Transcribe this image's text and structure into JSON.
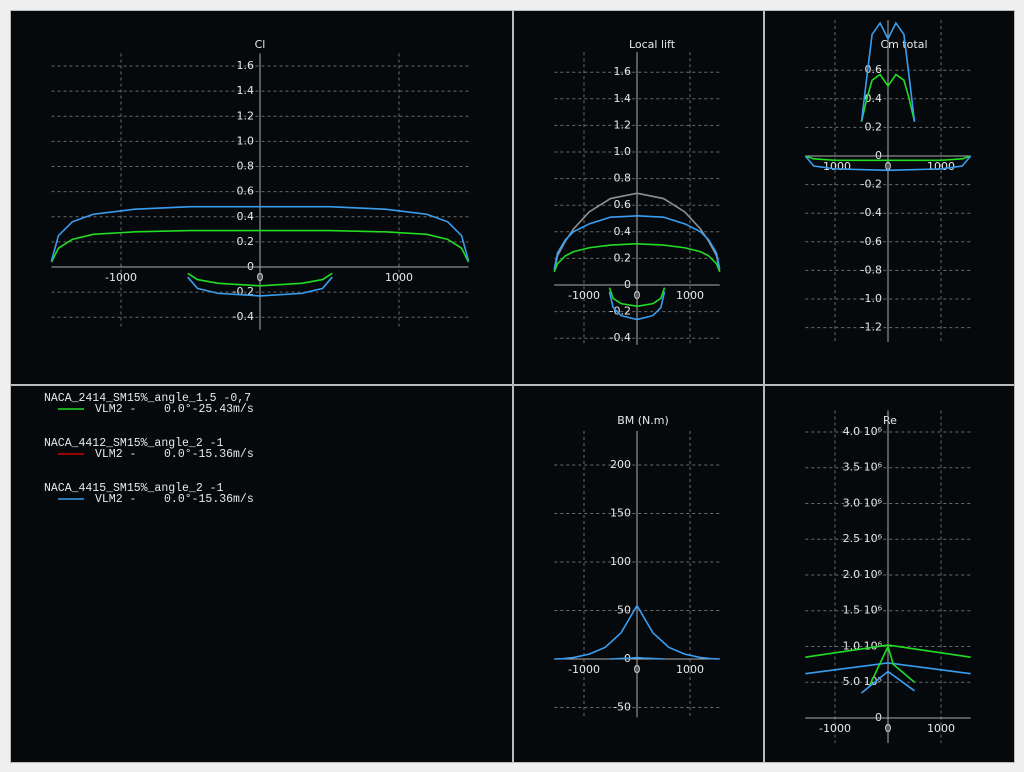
{
  "chart_data": [
    {
      "type": "line",
      "title": "Cl",
      "xlim": [
        -1500,
        1500
      ],
      "xticks": [
        -1000,
        0,
        1000
      ],
      "ylim": [
        -0.5,
        1.7
      ],
      "yticks": [
        1.6,
        1.4,
        1.2,
        {
          "value": 1,
          "label": "1.0"
        },
        0.8,
        0.6,
        0.4,
        0.2,
        0,
        -0.2,
        -0.4
      ],
      "grid": true,
      "series": [
        {
          "color": "#22dd22",
          "x": [
            -1500,
            -1450,
            -1350,
            -1200,
            -900,
            -500,
            0,
            500,
            900,
            1200,
            1350,
            1450,
            1500
          ],
          "values": [
            0.04,
            0.15,
            0.22,
            0.26,
            0.28,
            0.29,
            0.29,
            0.29,
            0.28,
            0.26,
            0.22,
            0.15,
            0.04
          ]
        },
        {
          "color": "#3a9ef0",
          "x": [
            -1500,
            -1450,
            -1350,
            -1200,
            -900,
            -500,
            0,
            500,
            900,
            1200,
            1350,
            1450,
            1500
          ],
          "values": [
            0.05,
            0.25,
            0.36,
            0.42,
            0.46,
            0.48,
            0.48,
            0.48,
            0.46,
            0.42,
            0.36,
            0.25,
            0.05
          ]
        },
        {
          "color": "#22dd22",
          "x": [
            -520,
            -450,
            -300,
            0,
            300,
            450,
            520
          ],
          "values": [
            -0.05,
            -0.1,
            -0.13,
            -0.15,
            -0.13,
            -0.1,
            -0.05
          ]
        },
        {
          "color": "#3a9ef0",
          "x": [
            -520,
            -450,
            -300,
            0,
            300,
            450,
            520
          ],
          "values": [
            -0.08,
            -0.17,
            -0.21,
            -0.23,
            -0.21,
            -0.17,
            -0.08
          ]
        }
      ]
    },
    {
      "type": "line",
      "title": "Local lift",
      "xlim": [
        -1560,
        1560
      ],
      "xticks": [
        -1000,
        0,
        1000
      ],
      "ylim": [
        -0.45,
        1.75
      ],
      "yticks": [
        1.6,
        1.4,
        1.2,
        {
          "value": 1,
          "label": "1.0"
        },
        0.8,
        0.6,
        0.4,
        0.2,
        0,
        -0.2,
        -0.4
      ],
      "grid": true,
      "series": [
        {
          "color": "#909090",
          "x": [
            -1560,
            -1500,
            -1350,
            -1200,
            -900,
            -500,
            0,
            500,
            900,
            1200,
            1350,
            1500,
            1560
          ],
          "values": [
            0.1,
            0.22,
            0.33,
            0.42,
            0.55,
            0.65,
            0.69,
            0.65,
            0.55,
            0.42,
            0.33,
            0.22,
            0.1
          ]
        },
        {
          "color": "#22dd22",
          "x": [
            -1560,
            -1500,
            -1350,
            -1200,
            -900,
            -500,
            0,
            500,
            900,
            1200,
            1350,
            1500,
            1560
          ],
          "values": [
            0.1,
            0.16,
            0.22,
            0.25,
            0.28,
            0.3,
            0.31,
            0.3,
            0.28,
            0.25,
            0.22,
            0.16,
            0.1
          ]
        },
        {
          "color": "#3a9ef0",
          "x": [
            -1560,
            -1500,
            -1350,
            -1200,
            -900,
            -500,
            0,
            500,
            900,
            1200,
            1350,
            1500,
            1560
          ],
          "values": [
            0.12,
            0.24,
            0.34,
            0.4,
            0.46,
            0.51,
            0.52,
            0.51,
            0.46,
            0.4,
            0.34,
            0.24,
            0.12
          ]
        },
        {
          "color": "#22dd22",
          "x": [
            -520,
            -450,
            -300,
            0,
            300,
            450,
            520
          ],
          "values": [
            -0.02,
            -0.1,
            -0.14,
            -0.16,
            -0.14,
            -0.1,
            -0.02
          ]
        },
        {
          "color": "#3a9ef0",
          "x": [
            -520,
            -450,
            -300,
            0,
            300,
            450,
            520
          ],
          "values": [
            -0.05,
            -0.17,
            -0.23,
            -0.26,
            -0.23,
            -0.17,
            -0.05
          ]
        }
      ]
    },
    {
      "type": "line",
      "title": "Cm total",
      "xlim": [
        -1560,
        1560
      ],
      "xticks": [
        -1000,
        0,
        1000
      ],
      "ylim": [
        -1.3,
        0.95
      ],
      "yticks": [
        0.6,
        0.4,
        0.2,
        0,
        -0.2,
        -0.4,
        -0.6,
        -0.8,
        {
          "value": -1,
          "label": "-1.0"
        },
        -1.2
      ],
      "grid": true,
      "series": [
        {
          "color": "#22dd22",
          "x": [
            -1560,
            -1400,
            -1000,
            0,
            1000,
            1400,
            1560
          ],
          "values": [
            0,
            -0.02,
            -0.03,
            -0.03,
            -0.03,
            -0.02,
            0
          ]
        },
        {
          "color": "#3a9ef0",
          "x": [
            -1560,
            -1400,
            -1000,
            0,
            1000,
            1400,
            1560
          ],
          "values": [
            0,
            -0.07,
            -0.09,
            -0.1,
            -0.09,
            -0.07,
            0
          ]
        },
        {
          "color": "#22dd22",
          "x": [
            -500,
            -400,
            -300,
            -150,
            0,
            150,
            300,
            400,
            500
          ],
          "values": [
            0.24,
            0.4,
            0.53,
            0.57,
            0.49,
            0.57,
            0.53,
            0.4,
            0.24
          ]
        },
        {
          "color": "#3a9ef0",
          "x": [
            -500,
            -400,
            -300,
            -150,
            0,
            150,
            300,
            400,
            500
          ],
          "values": [
            0.24,
            0.55,
            0.85,
            0.93,
            0.82,
            0.93,
            0.85,
            0.55,
            0.24
          ]
        }
      ]
    },
    {
      "type": "line",
      "title": "BM (N.m)",
      "xlim": [
        -1560,
        1560
      ],
      "xticks": [
        -1000,
        0,
        1000
      ],
      "ylim": [
        -60,
        235
      ],
      "yticks": [
        200,
        150,
        100,
        50,
        0,
        -50
      ],
      "grid": true,
      "series": [
        {
          "color": "#3a9ef0",
          "x": [
            -1560,
            -1400,
            -1200,
            -900,
            -600,
            -300,
            0,
            300,
            600,
            900,
            1200,
            1400,
            1560
          ],
          "values": [
            0,
            0.3,
            1.5,
            5,
            12,
            27,
            55,
            27,
            12,
            5,
            1.5,
            0.3,
            0
          ]
        },
        {
          "color": "#3a9ef0",
          "x": [
            -500,
            -300,
            -100,
            0,
            100,
            300,
            500
          ],
          "values": [
            0,
            0.5,
            1,
            1.5,
            1,
            0.5,
            0
          ]
        }
      ]
    },
    {
      "type": "line",
      "title": "Re",
      "xlim": [
        -1560,
        1560
      ],
      "xticks": [
        -1000,
        0,
        1000
      ],
      "ylim": [
        -350000,
        4300000
      ],
      "yticks": [
        0,
        {
          "value": 500000,
          "label": "5.0 10⁵"
        },
        {
          "value": 1000000,
          "label": "1.0 10⁶"
        },
        {
          "value": 1500000,
          "label": "1.5 10⁶"
        },
        {
          "value": 2000000,
          "label": "2.0 10⁶"
        },
        {
          "value": 2500000,
          "label": "2.5 10⁶"
        },
        {
          "value": 3000000,
          "label": "3.0 10⁶"
        },
        {
          "value": 3500000,
          "label": "3.5 10⁶"
        },
        {
          "value": 4000000,
          "label": "4.0 10⁶"
        }
      ],
      "grid": true,
      "series": [
        {
          "color": "#22dd22",
          "x": [
            -1560,
            0,
            1560
          ],
          "values": [
            850000,
            1020000,
            850000
          ]
        },
        {
          "color": "#3a9ef0",
          "x": [
            -1560,
            0,
            1560
          ],
          "values": [
            620000,
            770000,
            620000
          ]
        },
        {
          "color": "#22dd22",
          "x": [
            -350,
            0,
            100,
            500
          ],
          "values": [
            450000,
            1000000,
            750000,
            500000
          ]
        },
        {
          "color": "#3a9ef0",
          "x": [
            -500,
            0,
            500
          ],
          "values": [
            350000,
            650000,
            380000
          ]
        }
      ]
    }
  ],
  "legend": [
    {
      "wing": "NACA_2414_SM15%_angle_1.5 -0,7",
      "polar": "VLM2 -    0.0°-25.43m/s",
      "color": "#22dd22"
    },
    {
      "wing": "NACA_4412_SM15%_angle_2 -1",
      "polar": "VLM2 -    0.0°-15.36m/s",
      "color": "#cc0000"
    },
    {
      "wing": "NACA_4415_SM15%_angle_2 -1",
      "polar": "VLM2 -    0.0°-15.36m/s",
      "color": "#3a9ef0"
    }
  ]
}
